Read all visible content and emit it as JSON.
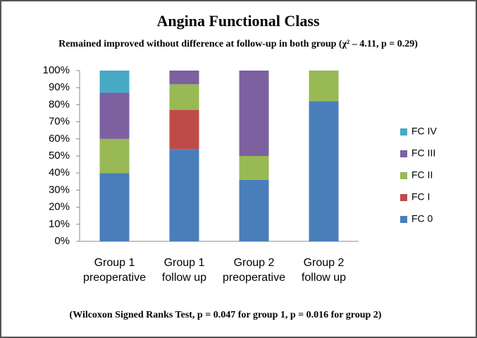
{
  "chart_data": {
    "type": "stacked_bar",
    "title": "Angina Functional Class",
    "subtitle": "Remained improved without difference at follow-up in both group (χ² – 4.11, p = 0.29)",
    "footnote": "(Wilcoxon Signed Ranks Test, p = 0.047 for group 1, p = 0.016 for group 2)",
    "categories": [
      "Group 1\npreoperative",
      "Group 1\nfollow up",
      "Group 2\npreoperative",
      "Group 2\nfollow up"
    ],
    "series": [
      {
        "name": "FC 0",
        "color": "#4a7ebb",
        "values": [
          40,
          54,
          36,
          82
        ]
      },
      {
        "name": "FC I",
        "color": "#be4b48",
        "values": [
          0,
          23,
          0,
          0
        ]
      },
      {
        "name": "FC II",
        "color": "#98b954",
        "values": [
          20,
          15,
          14,
          18
        ]
      },
      {
        "name": "FC III",
        "color": "#7d60a0",
        "values": [
          27,
          8,
          50,
          0
        ]
      },
      {
        "name": "FC IV",
        "color": "#46aac5",
        "values": [
          13,
          0,
          0,
          0
        ]
      }
    ],
    "ylim": [
      0,
      100
    ],
    "yticks": [
      {
        "value": 0,
        "label": "0%"
      },
      {
        "value": 10,
        "label": "10%"
      },
      {
        "value": 20,
        "label": "20%"
      },
      {
        "value": 30,
        "label": "30%"
      },
      {
        "value": 40,
        "label": "40%"
      },
      {
        "value": 50,
        "label": "50%"
      },
      {
        "value": 60,
        "label": "60%"
      },
      {
        "value": 70,
        "label": "70%"
      },
      {
        "value": 80,
        "label": "80%"
      },
      {
        "value": 90,
        "label": "90%"
      },
      {
        "value": 100,
        "label": "100%"
      }
    ],
    "grid": false,
    "legend": "right"
  }
}
